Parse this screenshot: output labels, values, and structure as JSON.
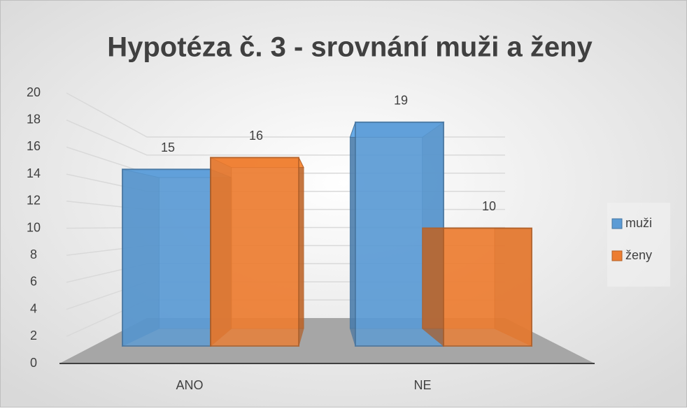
{
  "chart_data": {
    "type": "bar3d",
    "title": "Hypotéza č. 3  - srovnání muži a ženy",
    "categories": [
      "ANO",
      "NE"
    ],
    "series": [
      {
        "name": "muži",
        "color": "#5b9bd5",
        "values": [
          15,
          19
        ]
      },
      {
        "name": "ženy",
        "color": "#ed7d31",
        "values": [
          16,
          10
        ]
      }
    ],
    "ylim": [
      0,
      20
    ],
    "yticks": [
      0,
      2,
      4,
      6,
      8,
      10,
      12,
      14,
      16,
      18,
      20
    ],
    "grid": true,
    "legend": "right",
    "data_labels": true
  }
}
